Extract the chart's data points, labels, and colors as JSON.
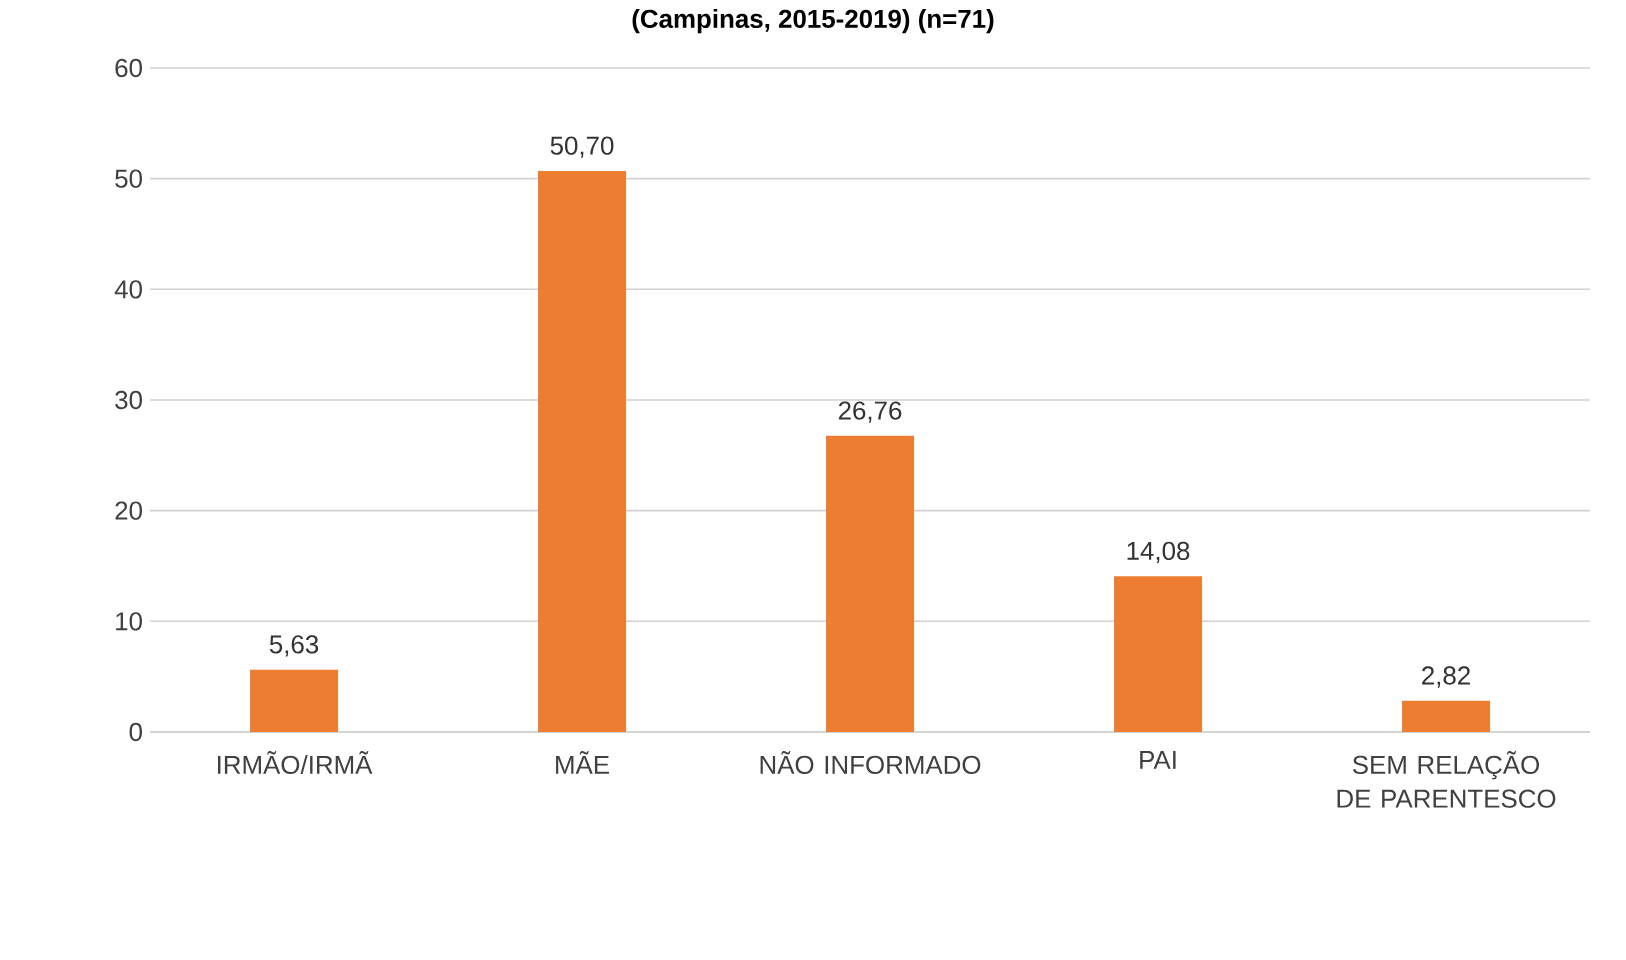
{
  "chart_data": {
    "type": "bar",
    "title": "(Campinas, 2015-2019) (n=71)",
    "categories": [
      "IRMÃO/IRMÃ",
      "MÃE",
      "NÃO INFORMADO",
      "PAI",
      "SEM RELAÇÃO DE PARENTESCO"
    ],
    "values": [
      5.63,
      50.7,
      26.76,
      14.08,
      2.82
    ],
    "value_labels": [
      "5,63",
      "50,70",
      "26,76",
      "14,08",
      "2,82"
    ],
    "color": "#ed7d31",
    "ylim": [
      0,
      60
    ],
    "yticks": [
      0,
      10,
      20,
      30,
      40,
      50,
      60
    ],
    "grid": "y"
  }
}
